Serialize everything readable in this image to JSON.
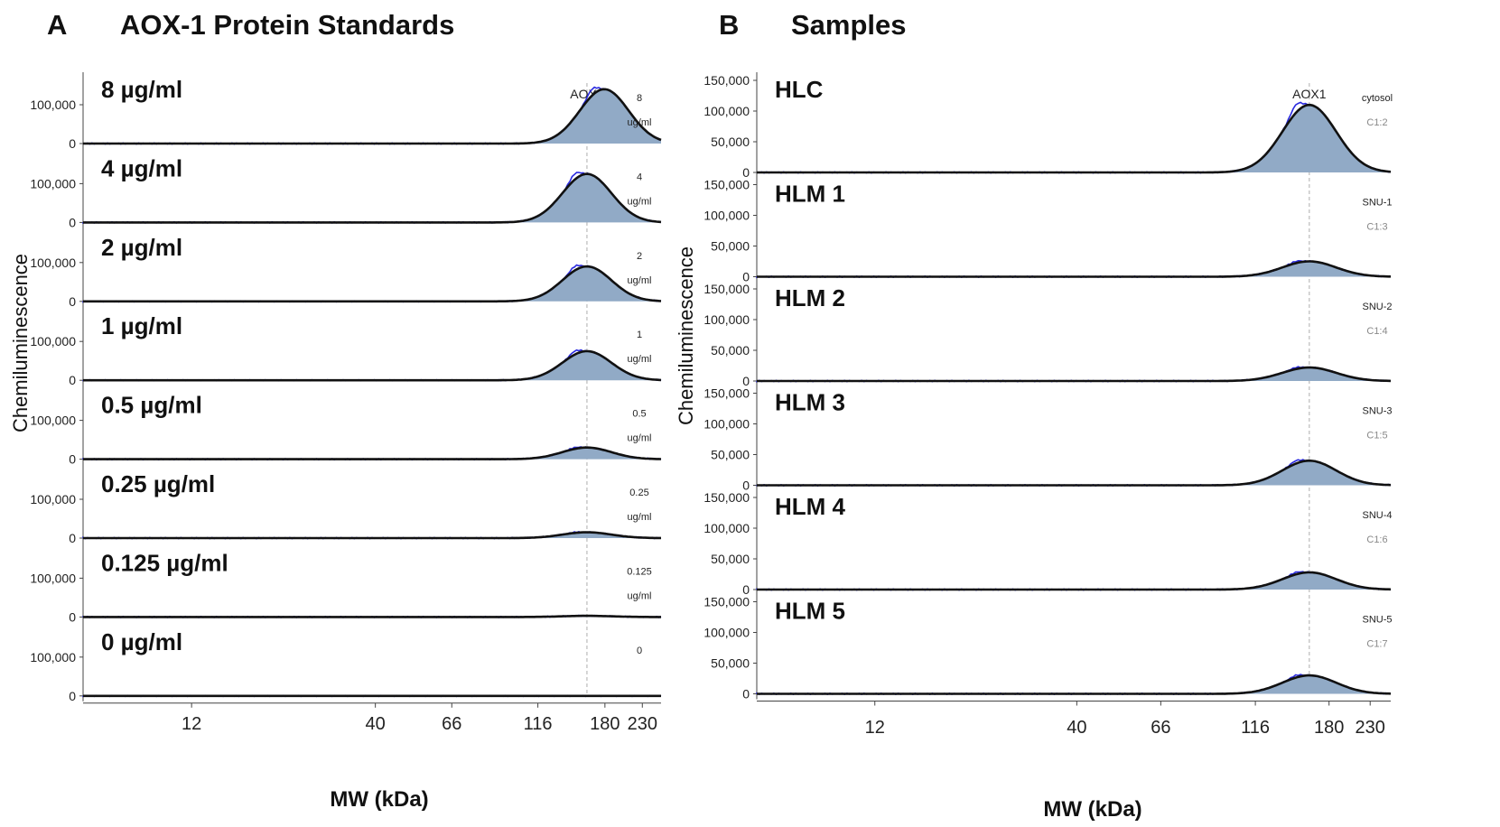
{
  "chart_data": [
    {
      "type": "area",
      "panel_letter": "A",
      "title": "AOX-1 Protein Standards",
      "xlabel": "MW (kDa)",
      "ylabel": "Chemiluminescence",
      "x_scale": "log",
      "xlim": [
        6,
        260
      ],
      "x_ticks": [
        12,
        40,
        66,
        116,
        180,
        230
      ],
      "y_ticks": [
        "100,000",
        "0"
      ],
      "ylim": [
        0,
        150000
      ],
      "peak_label": "AOX1",
      "peak_line_kda": 160,
      "series": [
        {
          "name": "8 µg/ml",
          "tag": [
            "8",
            "ug/ml"
          ],
          "peak_height": 140000
        },
        {
          "name": "4 µg/ml",
          "tag": [
            "4",
            "ug/ml"
          ],
          "peak_height": 125000
        },
        {
          "name": "2 µg/ml",
          "tag": [
            "2",
            "ug/ml"
          ],
          "peak_height": 90000
        },
        {
          "name": "1 µg/ml",
          "tag": [
            "1",
            "ug/ml"
          ],
          "peak_height": 75000
        },
        {
          "name": "0.5 µg/ml",
          "tag": [
            "0.5",
            "ug/ml"
          ],
          "peak_height": 30000
        },
        {
          "name": "0.25 µg/ml",
          "tag": [
            "0.25",
            "ug/ml"
          ],
          "peak_height": 15000
        },
        {
          "name": "0.125 µg/ml",
          "tag": [
            "0.125",
            "ug/ml"
          ],
          "peak_height": 3000
        },
        {
          "name": "0 µg/ml",
          "tag": [
            "0"
          ],
          "peak_height": 0
        }
      ]
    },
    {
      "type": "area",
      "panel_letter": "B",
      "title": "Samples",
      "xlabel": "MW (kDa)",
      "ylabel": "Chemiluminescence",
      "x_scale": "log",
      "xlim": [
        6,
        260
      ],
      "x_ticks": [
        12,
        40,
        66,
        116,
        180,
        230
      ],
      "y_ticks": [
        "150,000",
        "100,000",
        "50,000",
        "0"
      ],
      "ylim": [
        0,
        150000
      ],
      "peak_label": "AOX1",
      "peak_line_kda": 160,
      "series": [
        {
          "name": "HLC",
          "tag": [
            "cytosol",
            "C1:2"
          ],
          "peak_height": 110000
        },
        {
          "name": "HLM 1",
          "tag": [
            "SNU-1",
            "C1:3"
          ],
          "peak_height": 25000
        },
        {
          "name": "HLM 2",
          "tag": [
            "SNU-2",
            "C1:4"
          ],
          "peak_height": 22000
        },
        {
          "name": "HLM 3",
          "tag": [
            "SNU-3",
            "C1:5"
          ],
          "peak_height": 40000
        },
        {
          "name": "HLM 4",
          "tag": [
            "SNU-4",
            "C1:6"
          ],
          "peak_height": 28000
        },
        {
          "name": "HLM 5",
          "tag": [
            "SNU-5",
            "C1:7"
          ],
          "peak_height": 30000
        }
      ]
    }
  ],
  "colors": {
    "fill": "#91aac6",
    "fit_line": "#111111",
    "raw_line": "#2a2ae0",
    "guide": "#bbbbbb"
  }
}
